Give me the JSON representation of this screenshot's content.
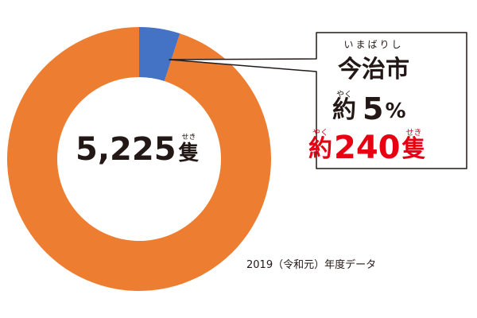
{
  "chart_data": {
    "type": "pie",
    "slices": [
      {
        "label": "今治市",
        "share_percent": 5,
        "value": 240
      },
      {
        "label": "",
        "share_percent": 95,
        "value": 4985
      }
    ],
    "total": {
      "value": "5,225",
      "unit": "隻",
      "unit_furigana": "せき"
    },
    "callout": {
      "city": "今治市",
      "city_furigana": "いまばりし",
      "approx": "約",
      "approx_furigana": "やく",
      "share_value": "5",
      "share_unit": "%",
      "count_value": "240",
      "count_unit": "隻",
      "count_unit_furigana": "せき"
    },
    "note": "2019（令和元）年度データ",
    "colors": {
      "city": "#4472c4",
      "other": "#ed7d31",
      "highlight": "#e60012",
      "text": "#231815"
    }
  }
}
